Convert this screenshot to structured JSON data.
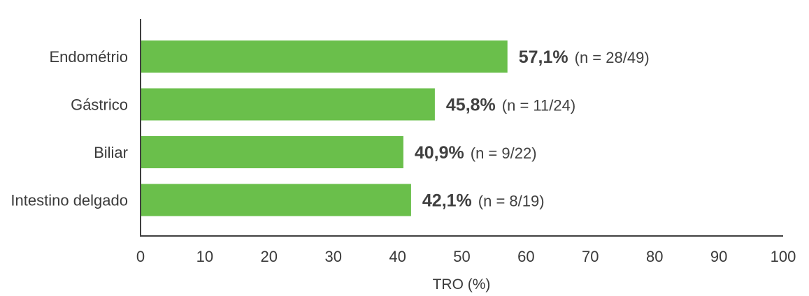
{
  "chart_data": {
    "type": "bar",
    "orientation": "horizontal",
    "categories": [
      "Endométrio",
      "Gástrico",
      "Biliar",
      "Intestino delgado"
    ],
    "values": [
      57.1,
      45.8,
      40.9,
      42.1
    ],
    "value_labels": [
      "57,1%",
      "45,8%",
      "40,9%",
      "42,1%"
    ],
    "n_labels": [
      "(n = 28/49)",
      "(n = 11/24)",
      "(n = 9/22)",
      "(n = 8/19)"
    ],
    "xlabel": "TRO (%)",
    "xlim": [
      0,
      100
    ],
    "xticks": [
      "0",
      "10",
      "20",
      "30",
      "40",
      "50",
      "60",
      "70",
      "80",
      "90",
      "100"
    ],
    "grid": false,
    "colors": {
      "bar": "#6abf4b",
      "axis": "#404040"
    }
  }
}
